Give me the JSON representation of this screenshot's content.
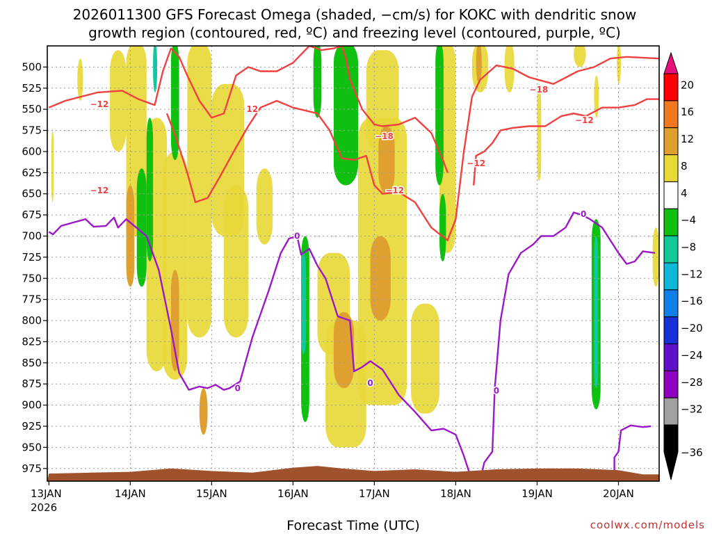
{
  "chart_data": {
    "type": "time-height cross section",
    "title_line1": "2026011300 GFS Forecast Omega (shaded, −cm/s) for KOKC with dendritic snow",
    "title_line2": "growth region (contoured, red, ºC) and freezing level (contoured, purple, ºC)",
    "xlabel": "Forecast Time (UTC)",
    "credit": "coolwx.com/models",
    "x_ticks": [
      {
        "label": "13JAN",
        "sub": "2026",
        "t": 0
      },
      {
        "label": "14JAN",
        "sub": "",
        "t": 1
      },
      {
        "label": "15JAN",
        "sub": "",
        "t": 2
      },
      {
        "label": "16JAN",
        "sub": "",
        "t": 3
      },
      {
        "label": "17JAN",
        "sub": "",
        "t": 4
      },
      {
        "label": "18JAN",
        "sub": "",
        "t": 5
      },
      {
        "label": "19JAN",
        "sub": "",
        "t": 6
      },
      {
        "label": "20JAN",
        "sub": "",
        "t": 7
      }
    ],
    "xlim": [
      -0.02,
      7.5
    ],
    "y_levels_hPa": [
      "500",
      "525",
      "550",
      "575",
      "600",
      "625",
      "650",
      "675",
      "700",
      "725",
      "750",
      "775",
      "800",
      "825",
      "850",
      "875",
      "900",
      "925",
      "950",
      "975"
    ],
    "ylim_hPa": [
      475,
      990
    ],
    "colorbar": {
      "labels": [
        "20",
        "16",
        "12",
        "8",
        "4",
        "−4",
        "−8",
        "−12",
        "−16",
        "−20",
        "−24",
        "−28",
        "−32",
        "−36"
      ],
      "colors": [
        "#ff0000",
        "#f07820",
        "#e0a030",
        "#e8d838",
        "#ffffff",
        "#10c010",
        "#10c898",
        "#10b8d8",
        "#1080e8",
        "#1830d8",
        "#6010c8",
        "#9000c0",
        "#a0a0a0",
        "#000000"
      ],
      "top_tip": "#e8107a",
      "bottom_tip": "#000000"
    },
    "colors": {
      "dgz_line": "#f04040",
      "freezing_line": "#9a18c8",
      "terrain": "#a0522d",
      "yellow": "#e8d838",
      "orange": "#e0a030",
      "green": "#10c010",
      "teal": "#10c8a0"
    },
    "contour_labels": [
      {
        "text": "−12",
        "t": 0.62,
        "p": 544,
        "color": "dgz"
      },
      {
        "text": "12",
        "t": 2.5,
        "p": 550,
        "color": "dgz"
      },
      {
        "text": "−12",
        "t": 0.62,
        "p": 646,
        "color": "dgz"
      },
      {
        "text": "−18",
        "t": 4.12,
        "p": 582,
        "color": "dgz"
      },
      {
        "text": "−12",
        "t": 4.25,
        "p": 646,
        "color": "dgz"
      },
      {
        "text": "−12",
        "t": 5.25,
        "p": 614,
        "color": "dgz"
      },
      {
        "text": "−18",
        "t": 6.02,
        "p": 527,
        "color": "dgz"
      },
      {
        "text": "−12",
        "t": 6.58,
        "p": 563,
        "color": "dgz"
      },
      {
        "text": "0",
        "t": 2.32,
        "p": 880,
        "color": "frz"
      },
      {
        "text": "0",
        "t": 3.05,
        "p": 700,
        "color": "frz"
      },
      {
        "text": "0",
        "t": 3.95,
        "p": 874,
        "color": "frz"
      },
      {
        "text": "0",
        "t": 5.5,
        "p": 883,
        "color": "frz"
      },
      {
        "text": "0",
        "t": 6.57,
        "p": 674,
        "color": "frz"
      }
    ],
    "dgz_upper_series": [
      [
        0,
        548
      ],
      [
        0.2,
        540
      ],
      [
        0.6,
        530
      ],
      [
        0.9,
        528
      ],
      [
        1.1,
        538
      ],
      [
        1.3,
        545
      ],
      [
        1.4,
        505
      ],
      [
        1.5,
        478
      ],
      [
        1.6,
        488
      ],
      [
        1.7,
        510
      ],
      [
        1.85,
        540
      ],
      [
        2.0,
        560
      ],
      [
        2.15,
        555
      ],
      [
        2.3,
        510
      ],
      [
        2.45,
        500
      ],
      [
        2.6,
        505
      ],
      [
        2.8,
        505
      ],
      [
        3.0,
        495
      ],
      [
        3.1,
        485
      ],
      [
        3.2,
        475
      ],
      [
        3.35,
        480
      ],
      [
        3.5,
        478
      ],
      [
        3.6,
        475
      ],
      [
        3.65,
        490
      ],
      [
        3.7,
        515
      ],
      [
        3.85,
        550
      ],
      [
        4.0,
        568
      ],
      [
        4.1,
        570
      ],
      [
        4.3,
        568
      ],
      [
        4.5,
        560
      ],
      [
        4.7,
        578
      ],
      [
        4.85,
        612
      ],
      [
        4.9,
        625
      ]
    ],
    "dgz_lower_series": [
      [
        1.45,
        555
      ],
      [
        1.55,
        580
      ],
      [
        1.7,
        625
      ],
      [
        1.8,
        660
      ],
      [
        1.95,
        655
      ],
      [
        2.1,
        630
      ],
      [
        2.3,
        595
      ],
      [
        2.45,
        570
      ],
      [
        2.6,
        548
      ],
      [
        2.8,
        540
      ],
      [
        3.0,
        548
      ],
      [
        3.3,
        555
      ],
      [
        3.45,
        575
      ],
      [
        3.6,
        608
      ],
      [
        3.75,
        610
      ],
      [
        3.9,
        605
      ],
      [
        4.0,
        640
      ],
      [
        4.1,
        650
      ],
      [
        4.3,
        648
      ],
      [
        4.5,
        660
      ],
      [
        4.7,
        690
      ],
      [
        4.9,
        705
      ],
      [
        5.0,
        680
      ],
      [
        5.1,
        600
      ],
      [
        5.2,
        535
      ],
      [
        5.3,
        515
      ],
      [
        5.5,
        498
      ],
      [
        5.7,
        502
      ],
      [
        5.9,
        512
      ],
      [
        6.2,
        520
      ],
      [
        6.5,
        505
      ],
      [
        6.7,
        500
      ],
      [
        6.9,
        490
      ],
      [
        7.1,
        488
      ],
      [
        7.5,
        490
      ]
    ],
    "dgz_far_series": [
      [
        5.22,
        640
      ],
      [
        5.25,
        605
      ],
      [
        5.35,
        600
      ],
      [
        5.45,
        590
      ],
      [
        5.55,
        575
      ],
      [
        5.7,
        572
      ],
      [
        5.9,
        570
      ],
      [
        6.1,
        570
      ],
      [
        6.3,
        558
      ],
      [
        6.45,
        555
      ],
      [
        6.6,
        558
      ],
      [
        6.8,
        548
      ],
      [
        7.0,
        548
      ],
      [
        7.2,
        545
      ],
      [
        7.35,
        538
      ],
      [
        7.5,
        538
      ]
    ],
    "freezing_series": [
      [
        0,
        695
      ],
      [
        0.05,
        698
      ],
      [
        0.15,
        688
      ],
      [
        0.3,
        684
      ],
      [
        0.45,
        680
      ],
      [
        0.55,
        689
      ],
      [
        0.7,
        688
      ],
      [
        0.8,
        678
      ],
      [
        0.85,
        690
      ],
      [
        0.95,
        680
      ],
      [
        1.1,
        692
      ],
      [
        1.2,
        700
      ],
      [
        1.35,
        740
      ],
      [
        1.5,
        810
      ],
      [
        1.6,
        862
      ],
      [
        1.72,
        882
      ],
      [
        1.85,
        878
      ],
      [
        1.95,
        880
      ],
      [
        2.05,
        876
      ],
      [
        2.15,
        882
      ],
      [
        2.22,
        880
      ],
      [
        2.35,
        872
      ],
      [
        2.5,
        820
      ],
      [
        2.7,
        765
      ],
      [
        2.85,
        720
      ],
      [
        2.95,
        703
      ],
      [
        3.05,
        700
      ],
      [
        3.1,
        722
      ],
      [
        3.2,
        715
      ],
      [
        3.3,
        735
      ],
      [
        3.4,
        750
      ],
      [
        3.55,
        795
      ],
      [
        3.7,
        800
      ],
      [
        3.75,
        860
      ],
      [
        3.85,
        855
      ],
      [
        3.95,
        848
      ],
      [
        4.1,
        858
      ],
      [
        4.3,
        888
      ],
      [
        4.5,
        908
      ],
      [
        4.7,
        930
      ],
      [
        4.85,
        928
      ],
      [
        5.0,
        935
      ],
      [
        5.1,
        960
      ],
      [
        5.2,
        990
      ]
    ],
    "freezing_series_2": [
      [
        5.3,
        990
      ],
      [
        5.35,
        968
      ],
      [
        5.45,
        955
      ],
      [
        5.48,
        880
      ],
      [
        5.55,
        800
      ],
      [
        5.65,
        745
      ],
      [
        5.8,
        720
      ],
      [
        5.95,
        710
      ],
      [
        6.05,
        700
      ],
      [
        6.2,
        700
      ],
      [
        6.35,
        690
      ],
      [
        6.45,
        672
      ],
      [
        6.55,
        675
      ],
      [
        6.65,
        680
      ],
      [
        6.8,
        690
      ],
      [
        6.9,
        705
      ],
      [
        7.0,
        720
      ],
      [
        7.1,
        733
      ],
      [
        7.2,
        730
      ],
      [
        7.3,
        718
      ],
      [
        7.45,
        720
      ]
    ],
    "freezing_series_3": [
      [
        6.95,
        990
      ],
      [
        6.95,
        962
      ],
      [
        7.0,
        955
      ],
      [
        7.03,
        930
      ],
      [
        7.15,
        924
      ],
      [
        7.3,
        926
      ],
      [
        7.4,
        925
      ]
    ],
    "shading_features": [
      {
        "c": "yellow",
        "t0": 0.03,
        "t1": 0.06,
        "p0": 575,
        "p1": 660
      },
      {
        "c": "yellow",
        "t0": 0.35,
        "t1": 0.42,
        "p0": 490,
        "p1": 540
      },
      {
        "c": "yellow",
        "t0": 0.75,
        "t1": 0.95,
        "p0": 480,
        "p1": 600
      },
      {
        "c": "yellow",
        "t0": 0.95,
        "t1": 1.2,
        "p0": 470,
        "p1": 700
      },
      {
        "c": "yellow",
        "t0": 1.2,
        "t1": 1.45,
        "p0": 560,
        "p1": 860
      },
      {
        "c": "yellow",
        "t0": 1.4,
        "t1": 1.7,
        "p0": 600,
        "p1": 870
      },
      {
        "c": "yellow",
        "t0": 1.7,
        "t1": 2.0,
        "p0": 470,
        "p1": 820
      },
      {
        "c": "yellow",
        "t0": 2.0,
        "t1": 2.4,
        "p0": 520,
        "p1": 700
      },
      {
        "c": "yellow",
        "t0": 2.15,
        "t1": 2.45,
        "p0": 640,
        "p1": 820
      },
      {
        "c": "yellow",
        "t0": 2.55,
        "t1": 2.75,
        "p0": 620,
        "p1": 710
      },
      {
        "c": "yellow",
        "t0": 3.3,
        "t1": 3.7,
        "p0": 720,
        "p1": 840
      },
      {
        "c": "yellow",
        "t0": 3.4,
        "t1": 3.9,
        "p0": 800,
        "p1": 950
      },
      {
        "c": "yellow",
        "t0": 3.8,
        "t1": 4.4,
        "p0": 560,
        "p1": 900
      },
      {
        "c": "yellow",
        "t0": 3.9,
        "t1": 4.3,
        "p0": 480,
        "p1": 600
      },
      {
        "c": "yellow",
        "t0": 4.45,
        "t1": 4.8,
        "p0": 780,
        "p1": 910
      },
      {
        "c": "yellow",
        "t0": 4.8,
        "t1": 5.0,
        "p0": 470,
        "p1": 720
      },
      {
        "c": "yellow",
        "t0": 5.2,
        "t1": 5.4,
        "p0": 470,
        "p1": 530
      },
      {
        "c": "yellow",
        "t0": 5.6,
        "t1": 5.72,
        "p0": 470,
        "p1": 530
      },
      {
        "c": "yellow",
        "t0": 6.0,
        "t1": 6.05,
        "p0": 520,
        "p1": 635
      },
      {
        "c": "yellow",
        "t0": 6.7,
        "t1": 6.76,
        "p0": 510,
        "p1": 560
      },
      {
        "c": "yellow",
        "t0": 6.45,
        "t1": 6.6,
        "p0": 470,
        "p1": 500
      },
      {
        "c": "yellow",
        "t0": 6.98,
        "t1": 7.03,
        "p0": 470,
        "p1": 520
      },
      {
        "c": "yellow",
        "t0": 7.42,
        "t1": 7.5,
        "p0": 690,
        "p1": 760
      },
      {
        "c": "orange",
        "t0": 0.95,
        "t1": 1.05,
        "p0": 640,
        "p1": 760
      },
      {
        "c": "orange",
        "t0": 1.5,
        "t1": 1.6,
        "p0": 740,
        "p1": 860
      },
      {
        "c": "orange",
        "t0": 1.85,
        "t1": 1.95,
        "p0": 880,
        "p1": 935
      },
      {
        "c": "orange",
        "t0": 3.5,
        "t1": 3.75,
        "p0": 790,
        "p1": 880
      },
      {
        "c": "orange",
        "t0": 3.95,
        "t1": 4.2,
        "p0": 700,
        "p1": 800
      },
      {
        "c": "orange",
        "t0": 4.05,
        "t1": 4.25,
        "p0": 570,
        "p1": 650
      },
      {
        "c": "orange",
        "t0": 5.25,
        "t1": 5.32,
        "p0": 470,
        "p1": 520
      },
      {
        "c": "green",
        "t0": 1.08,
        "t1": 1.2,
        "p0": 620,
        "p1": 760
      },
      {
        "c": "green",
        "t0": 1.2,
        "t1": 1.28,
        "p0": 560,
        "p1": 730
      },
      {
        "c": "green",
        "t0": 1.5,
        "t1": 1.6,
        "p0": 470,
        "p1": 610
      },
      {
        "c": "green",
        "t0": 3.1,
        "t1": 3.2,
        "p0": 700,
        "p1": 920
      },
      {
        "c": "green",
        "t0": 3.25,
        "t1": 3.35,
        "p0": 470,
        "p1": 560
      },
      {
        "c": "green",
        "t0": 3.5,
        "t1": 3.8,
        "p0": 470,
        "p1": 640
      },
      {
        "c": "green",
        "t0": 4.75,
        "t1": 4.85,
        "p0": 470,
        "p1": 640
      },
      {
        "c": "green",
        "t0": 4.8,
        "t1": 4.88,
        "p0": 650,
        "p1": 730
      },
      {
        "c": "green",
        "t0": 6.67,
        "t1": 6.78,
        "p0": 680,
        "p1": 905
      },
      {
        "c": "teal",
        "t0": 1.28,
        "t1": 1.33,
        "p0": 470,
        "p1": 530
      },
      {
        "c": "teal",
        "t0": 3.1,
        "t1": 3.16,
        "p0": 720,
        "p1": 840
      },
      {
        "c": "teal",
        "t0": 6.7,
        "t1": 6.75,
        "p0": 700,
        "p1": 880
      }
    ],
    "terrain_top_series": [
      [
        0,
        981
      ],
      [
        0.5,
        980
      ],
      [
        1.0,
        979
      ],
      [
        1.5,
        975
      ],
      [
        2.0,
        978
      ],
      [
        2.5,
        980
      ],
      [
        3.0,
        974
      ],
      [
        3.3,
        972
      ],
      [
        3.6,
        975
      ],
      [
        4.0,
        978
      ],
      [
        4.5,
        976
      ],
      [
        5.0,
        979
      ],
      [
        5.5,
        976
      ],
      [
        6.0,
        975
      ],
      [
        6.5,
        975
      ],
      [
        7.0,
        977
      ],
      [
        7.3,
        982
      ],
      [
        7.5,
        982
      ]
    ]
  }
}
